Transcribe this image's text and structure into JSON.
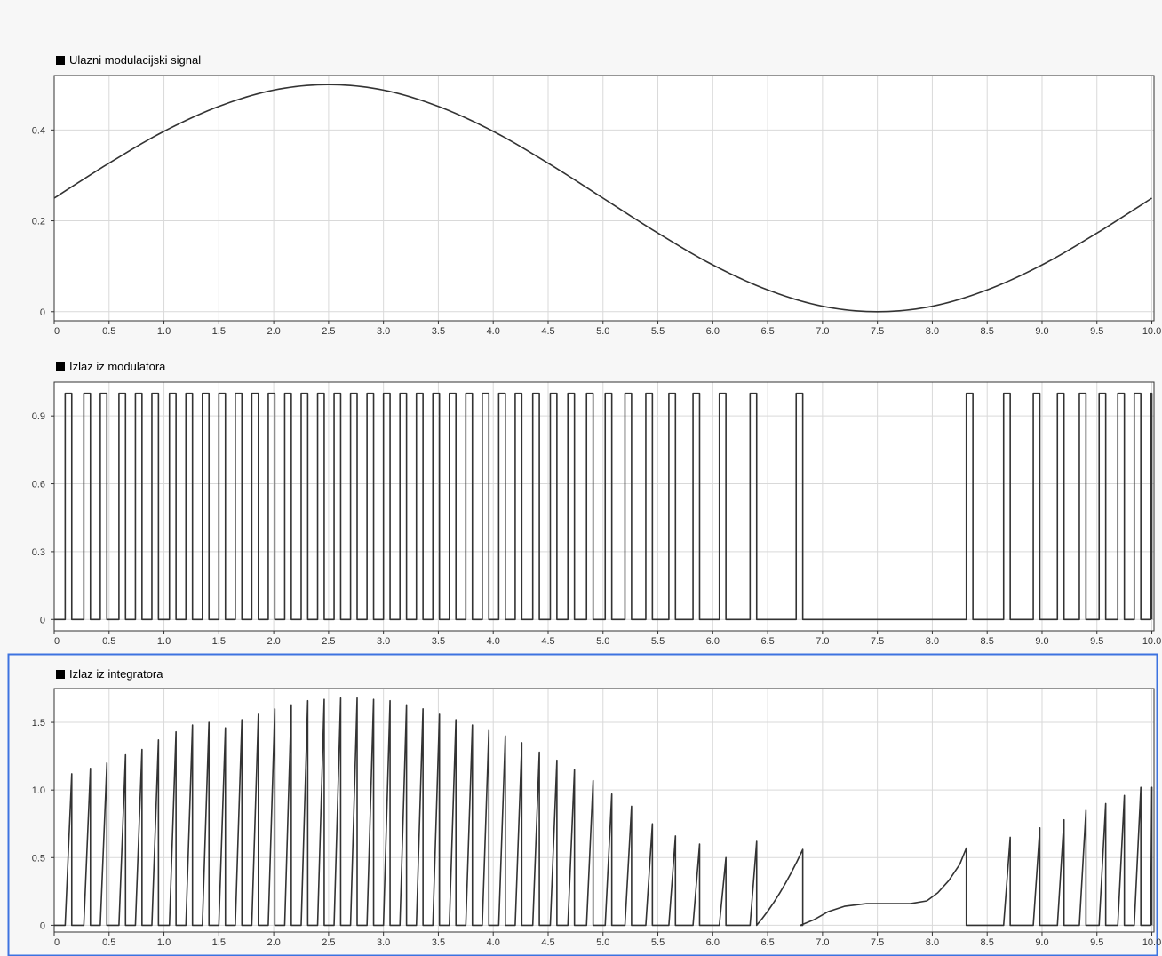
{
  "colors": {
    "background": "#f7f7f7",
    "plot_background": "#ffffff",
    "grid": "#d9d9d9",
    "line": "#333333",
    "axis_text": "#333333",
    "selection_border": "#3d73e0"
  },
  "chart_data": [
    {
      "type": "line",
      "title": "Ulazni modulacijski signal",
      "xlim": [
        0,
        10
      ],
      "ylim": [
        -0.02,
        0.52
      ],
      "x_ticks": [
        0,
        0.5,
        1.0,
        1.5,
        2.0,
        2.5,
        3.0,
        3.5,
        4.0,
        4.5,
        5.0,
        5.5,
        6.0,
        6.5,
        7.0,
        7.5,
        8.0,
        8.5,
        9.0,
        9.5,
        10.0
      ],
      "x_tick_labels": [
        "0",
        "0.5",
        "1.0",
        "1.5",
        "2.0",
        "2.5",
        "3.0",
        "3.5",
        "4.0",
        "4.5",
        "5.0",
        "5.5",
        "6.0",
        "6.5",
        "7.0",
        "7.5",
        "8.0",
        "8.5",
        "9.0",
        "9.5",
        "10.0"
      ],
      "y_ticks": [
        0,
        0.2,
        0.4
      ],
      "y_tick_labels": [
        "0",
        "0.2",
        "0.4"
      ],
      "grid": true,
      "selected": false,
      "series": [
        {
          "x": [
            0,
            0.5,
            1,
            1.5,
            2,
            2.5,
            3,
            3.5,
            4,
            4.5,
            5,
            5.5,
            6,
            6.5,
            7,
            7.5,
            8,
            8.5,
            9,
            9.5,
            10
          ],
          "values": [
            0.25,
            0.327,
            0.397,
            0.452,
            0.488,
            0.5,
            0.488,
            0.452,
            0.397,
            0.327,
            0.25,
            0.173,
            0.103,
            0.048,
            0.012,
            0.0,
            0.012,
            0.048,
            0.103,
            0.173,
            0.25
          ]
        }
      ]
    },
    {
      "type": "line",
      "title": "Izlaz iz modulatora",
      "xlim": [
        0,
        10
      ],
      "ylim": [
        -0.05,
        1.05
      ],
      "x_ticks": [
        0,
        0.5,
        1.0,
        1.5,
        2.0,
        2.5,
        3.0,
        3.5,
        4.0,
        4.5,
        5.0,
        5.5,
        6.0,
        6.5,
        7.0,
        7.5,
        8.0,
        8.5,
        9.0,
        9.5,
        10.0
      ],
      "x_tick_labels": [
        "0",
        "0.5",
        "1.0",
        "1.5",
        "2.0",
        "2.5",
        "3.0",
        "3.5",
        "4.0",
        "4.5",
        "5.0",
        "5.5",
        "6.0",
        "6.5",
        "7.0",
        "7.5",
        "8.0",
        "8.5",
        "9.0",
        "9.5",
        "10.0"
      ],
      "y_ticks": [
        0,
        0.3,
        0.6,
        0.9
      ],
      "y_tick_labels": [
        "0",
        "0.3",
        "0.6",
        "0.9"
      ],
      "grid": true,
      "selected": false,
      "pulse_width": 0.06,
      "pulse_high": 1,
      "pulse_low": 0,
      "pulse_starts": [
        0.1,
        0.27,
        0.42,
        0.59,
        0.74,
        0.89,
        1.05,
        1.2,
        1.35,
        1.5,
        1.65,
        1.8,
        1.95,
        2.1,
        2.25,
        2.4,
        2.55,
        2.7,
        2.85,
        3.0,
        3.15,
        3.3,
        3.45,
        3.6,
        3.75,
        3.9,
        4.05,
        4.2,
        4.36,
        4.52,
        4.68,
        4.85,
        5.02,
        5.2,
        5.39,
        5.6,
        5.82,
        6.06,
        6.34,
        6.76,
        8.31,
        8.65,
        8.92,
        9.14,
        9.34,
        9.52,
        9.69,
        9.84,
        9.99
      ]
    },
    {
      "type": "line",
      "title": "Izlaz iz integratora",
      "xlim": [
        0,
        10
      ],
      "ylim": [
        -0.05,
        1.75
      ],
      "x_ticks": [
        0,
        0.5,
        1.0,
        1.5,
        2.0,
        2.5,
        3.0,
        3.5,
        4.0,
        4.5,
        5.0,
        5.5,
        6.0,
        6.5,
        7.0,
        7.5,
        8.0,
        8.5,
        9.0,
        9.5,
        10.0
      ],
      "x_tick_labels": [
        "0",
        "0.5",
        "1.0",
        "1.5",
        "2.0",
        "2.5",
        "3.0",
        "3.5",
        "4.0",
        "4.5",
        "5.0",
        "5.5",
        "6.0",
        "6.5",
        "7.0",
        "7.5",
        "8.0",
        "8.5",
        "9.0",
        "9.5",
        "10.0"
      ],
      "y_ticks": [
        0,
        0.5,
        1.0,
        1.5
      ],
      "y_tick_labels": [
        "0",
        "0.5",
        "1.0",
        "1.5"
      ],
      "grid": true,
      "selected": true,
      "plateau": {
        "x": [
          6.8,
          6.92,
          7.05,
          7.2,
          7.4,
          7.6,
          7.8,
          7.95,
          8.05,
          8.15,
          8.25,
          8.31
        ],
        "values": [
          0.0,
          0.04,
          0.1,
          0.14,
          0.16,
          0.16,
          0.16,
          0.18,
          0.24,
          0.33,
          0.45,
          0.57
        ]
      },
      "peaks": [
        1.12,
        1.16,
        1.2,
        1.26,
        1.3,
        1.37,
        1.43,
        1.48,
        1.5,
        1.46,
        1.52,
        1.56,
        1.6,
        1.63,
        1.66,
        1.67,
        1.68,
        1.68,
        1.67,
        1.66,
        1.63,
        1.6,
        1.56,
        1.52,
        1.48,
        1.44,
        1.4,
        1.35,
        1.28,
        1.22,
        1.15,
        1.07,
        0.97,
        0.88,
        0.75,
        0.66,
        0.6,
        0.5,
        0.62,
        0.56,
        0.57,
        0.65,
        0.72,
        0.78,
        0.85,
        0.9,
        0.96,
        1.02,
        1.02
      ]
    }
  ]
}
